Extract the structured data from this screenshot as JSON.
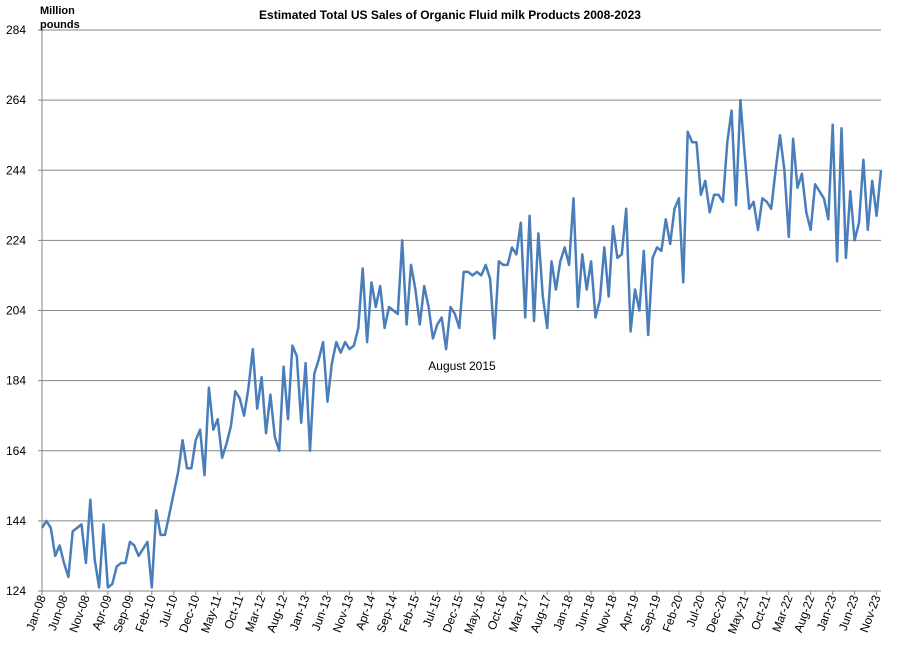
{
  "chart_data": {
    "type": "line",
    "title": "Estimated Total US Sales of Organic Fluid milk Products 2008-2023",
    "y_label": "Million pounds",
    "annotation": "August 2015",
    "ylim": [
      124,
      284
    ],
    "yticks": [
      124,
      144,
      164,
      184,
      204,
      224,
      244,
      264,
      284
    ],
    "grid": true,
    "categories": [
      "Jan-08",
      null,
      null,
      null,
      null,
      "Jun-08",
      null,
      null,
      null,
      null,
      "Nov-08",
      null,
      null,
      null,
      null,
      "Apr-09",
      null,
      null,
      null,
      null,
      "Sep-09",
      null,
      null,
      null,
      null,
      "Feb-10",
      null,
      null,
      null,
      null,
      "Jul-10",
      null,
      null,
      null,
      null,
      "Dec-10",
      null,
      null,
      null,
      null,
      "May-11",
      null,
      null,
      null,
      null,
      "Oct-11",
      null,
      null,
      null,
      null,
      "Mar-12",
      null,
      null,
      null,
      null,
      "Aug-12",
      null,
      null,
      null,
      null,
      "Jan-13",
      null,
      null,
      null,
      null,
      "Jun-13",
      null,
      null,
      null,
      null,
      "Nov-13",
      null,
      null,
      null,
      null,
      "Apr-14",
      null,
      null,
      null,
      null,
      "Sep-14",
      null,
      null,
      null,
      null,
      "Feb-15",
      null,
      null,
      null,
      null,
      "Jul-15",
      null,
      null,
      null,
      null,
      "Dec-15",
      null,
      null,
      null,
      null,
      "May-16",
      null,
      null,
      null,
      null,
      "Oct-16",
      null,
      null,
      null,
      null,
      "Mar-17",
      null,
      null,
      null,
      null,
      "Aug-17",
      null,
      null,
      null,
      null,
      "Jan-18",
      null,
      null,
      null,
      null,
      "Jun-18",
      null,
      null,
      null,
      null,
      "Nov-18",
      null,
      null,
      null,
      null,
      "Apr-19",
      null,
      null,
      null,
      null,
      "Sep-19",
      null,
      null,
      null,
      null,
      "Feb-20",
      null,
      null,
      null,
      null,
      "Jul-20",
      null,
      null,
      null,
      null,
      "Dec-20",
      null,
      null,
      null,
      null,
      "May-21",
      null,
      null,
      null,
      null,
      "Oct-21",
      null,
      null,
      null,
      null,
      "Mar-22",
      null,
      null,
      null,
      null,
      "Aug-22",
      null,
      null,
      null,
      null,
      "Jan-23",
      null,
      null,
      null,
      null,
      "Jun-23",
      null,
      null,
      null,
      null,
      "Nov-23",
      null
    ],
    "color": "#4a7ebb",
    "values": [
      142,
      144,
      142,
      134,
      137,
      132,
      128,
      141,
      142,
      143,
      132,
      150,
      133,
      125,
      143,
      125,
      126,
      131,
      132,
      132,
      138,
      137,
      134,
      136,
      138,
      125,
      147,
      140,
      140,
      146,
      152,
      158,
      167,
      159,
      159,
      167,
      170,
      157,
      182,
      170,
      173,
      162,
      166,
      171,
      181,
      179,
      174,
      182,
      193,
      176,
      185,
      169,
      180,
      168,
      164,
      188,
      173,
      194,
      191,
      172,
      189,
      164,
      186,
      190,
      195,
      178,
      189,
      195,
      192,
      195,
      193,
      194,
      199,
      216,
      195,
      212,
      205,
      211,
      199,
      205,
      204,
      203,
      224,
      200,
      217,
      210,
      200,
      211,
      205,
      196,
      200,
      202,
      193,
      205,
      203,
      199,
      215,
      215,
      214,
      215,
      214,
      217,
      213,
      196,
      218,
      217,
      217,
      222,
      220,
      229,
      202,
      231,
      201,
      226,
      208,
      199,
      218,
      210,
      218,
      222,
      217,
      236,
      205,
      220,
      210,
      218,
      202,
      207,
      222,
      208,
      228,
      219,
      220,
      233,
      198,
      210,
      204,
      221,
      197,
      219,
      222,
      221,
      230,
      223,
      233,
      236,
      212,
      255,
      252,
      252,
      237,
      241,
      232,
      237,
      237,
      235,
      252,
      261,
      234,
      264,
      248,
      233,
      235,
      227,
      236,
      235,
      233,
      244,
      254,
      244,
      225,
      253,
      239,
      243,
      232,
      227,
      240,
      238,
      236,
      230,
      257,
      218,
      256,
      219,
      238,
      224,
      229,
      247,
      227,
      241,
      231,
      244
    ]
  }
}
